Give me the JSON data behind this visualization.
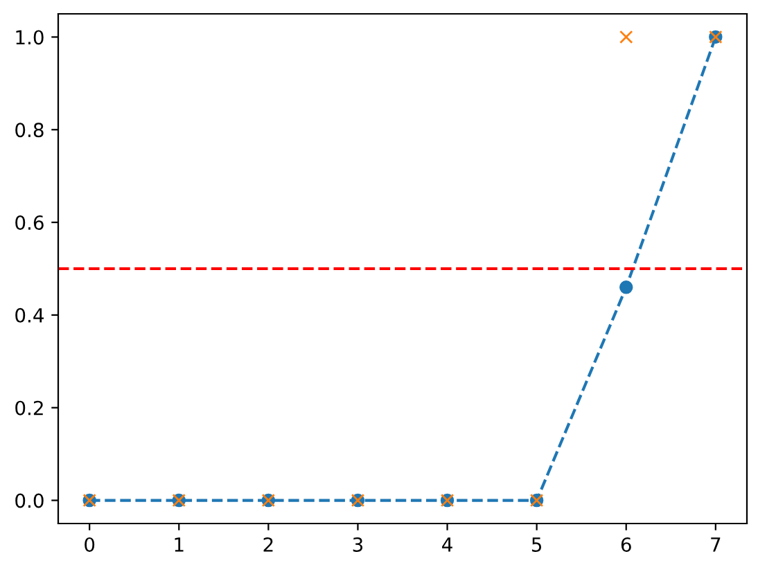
{
  "chart_data": {
    "type": "line",
    "x": [
      0,
      1,
      2,
      3,
      4,
      5,
      6,
      7
    ],
    "series": [
      {
        "color": "#1f77b4",
        "marker": "circle",
        "line_style": "dashed",
        "values": [
          0,
          0,
          0,
          0,
          0,
          0,
          0.46,
          1.0
        ]
      },
      {
        "type": "scatter",
        "color": "#ff7f0e",
        "marker": "cross",
        "values": [
          0,
          0,
          0,
          0,
          0,
          0,
          1.0,
          1.0
        ]
      }
    ],
    "xlim": [
      -0.35,
      7.35
    ],
    "xticks": [
      0,
      1,
      2,
      3,
      4,
      5,
      6,
      7
    ],
    "ylim": [
      -0.05,
      1.05
    ],
    "yticks": [
      {
        "value": 0,
        "label": "0.0"
      },
      {
        "value": 0.2,
        "label": "0.2"
      },
      {
        "value": 0.4,
        "label": "0.4"
      },
      {
        "value": 0.6,
        "label": "0.6"
      },
      {
        "value": 0.8,
        "label": "0.8"
      },
      {
        "value": 1.0,
        "label": "1.0"
      }
    ],
    "ref_lines": [
      {
        "axis": "y",
        "value": 0.5,
        "color": "#ff0000",
        "line_style": "dashed"
      }
    ],
    "grid": false
  }
}
